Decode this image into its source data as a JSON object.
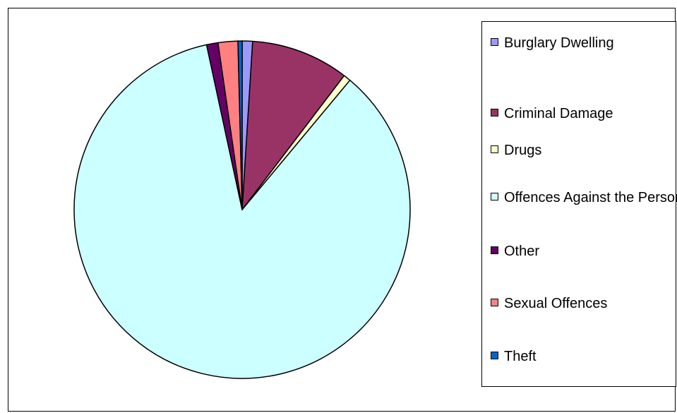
{
  "chart_data": {
    "type": "pie",
    "title": "",
    "unit": "percent (approx.)",
    "categories": [
      "Burglary Dwelling",
      "Criminal Damage",
      "Drugs",
      "Offences Against the Person",
      "Other",
      "Sexual Offences",
      "Theft"
    ],
    "values": [
      1.0,
      9.4,
      0.7,
      85.6,
      1.1,
      1.9,
      0.4
    ],
    "colors": [
      "#9999ff",
      "#993366",
      "#ffffcc",
      "#ccffff",
      "#660066",
      "#ff8080",
      "#0066cc"
    ],
    "slice_order": [
      "Burglary Dwelling",
      "Criminal Damage",
      "Drugs",
      "Offences Against the Person",
      "Other",
      "Sexual Offences",
      "Theft"
    ],
    "start_angle": "12 o'clock",
    "direction": "clockwise",
    "legend_position": "right"
  }
}
